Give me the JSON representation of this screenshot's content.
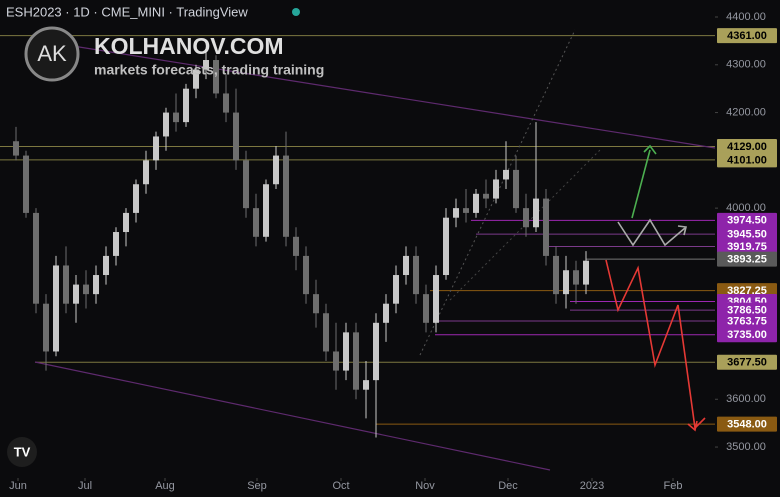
{
  "header": {
    "symbol_line": "ESH2023 · 1D · CME_MINI · TradingView"
  },
  "watermark": {
    "logo": "AK",
    "site": "KOLHANOV.COM",
    "tagline": "markets forecasts, trading training"
  },
  "chart_data": {
    "type": "candlestick",
    "x": [
      0,
      1,
      2,
      3,
      4,
      5,
      6,
      7,
      8,
      9,
      10,
      11,
      12,
      13,
      14,
      15,
      16,
      17,
      18,
      19,
      20,
      21,
      22,
      23,
      24,
      25,
      26,
      27,
      28,
      29,
      30,
      31,
      32,
      33,
      34,
      35,
      36,
      37,
      38,
      39,
      40,
      41,
      42,
      43,
      44,
      45,
      46,
      47,
      48,
      49,
      50,
      51,
      52,
      53,
      54,
      55,
      56,
      57
    ],
    "candles": [
      [
        4140,
        4170,
        4100,
        4110
      ],
      [
        4110,
        4120,
        3980,
        3990
      ],
      [
        3990,
        4000,
        3780,
        3800
      ],
      [
        3800,
        3820,
        3660,
        3700
      ],
      [
        3700,
        3900,
        3690,
        3880
      ],
      [
        3880,
        3920,
        3780,
        3800
      ],
      [
        3800,
        3860,
        3760,
        3840
      ],
      [
        3840,
        3870,
        3790,
        3820
      ],
      [
        3820,
        3880,
        3800,
        3860
      ],
      [
        3860,
        3920,
        3840,
        3900
      ],
      [
        3900,
        3960,
        3880,
        3950
      ],
      [
        3950,
        4000,
        3920,
        3990
      ],
      [
        3990,
        4060,
        3970,
        4050
      ],
      [
        4050,
        4120,
        4030,
        4100
      ],
      [
        4100,
        4160,
        4080,
        4150
      ],
      [
        4150,
        4210,
        4120,
        4200
      ],
      [
        4200,
        4240,
        4160,
        4180
      ],
      [
        4180,
        4260,
        4170,
        4250
      ],
      [
        4250,
        4300,
        4230,
        4290
      ],
      [
        4290,
        4330,
        4270,
        4310
      ],
      [
        4310,
        4320,
        4230,
        4240
      ],
      [
        4240,
        4280,
        4180,
        4200
      ],
      [
        4200,
        4250,
        4080,
        4100
      ],
      [
        4100,
        4120,
        3980,
        4000
      ],
      [
        4000,
        4030,
        3920,
        3940
      ],
      [
        3940,
        4060,
        3930,
        4050
      ],
      [
        4050,
        4130,
        4040,
        4110
      ],
      [
        4110,
        4160,
        3920,
        3940
      ],
      [
        3940,
        3960,
        3870,
        3900
      ],
      [
        3900,
        3920,
        3800,
        3820
      ],
      [
        3820,
        3850,
        3750,
        3780
      ],
      [
        3780,
        3800,
        3680,
        3700
      ],
      [
        3700,
        3760,
        3620,
        3660
      ],
      [
        3660,
        3760,
        3640,
        3740
      ],
      [
        3740,
        3760,
        3600,
        3620
      ],
      [
        3620,
        3680,
        3560,
        3640
      ],
      [
        3640,
        3780,
        3520,
        3760
      ],
      [
        3760,
        3820,
        3720,
        3800
      ],
      [
        3800,
        3880,
        3780,
        3860
      ],
      [
        3860,
        3920,
        3840,
        3900
      ],
      [
        3900,
        3920,
        3800,
        3820
      ],
      [
        3820,
        3840,
        3740,
        3760
      ],
      [
        3760,
        3880,
        3740,
        3860
      ],
      [
        3860,
        4000,
        3850,
        3980
      ],
      [
        3980,
        4020,
        3960,
        4000
      ],
      [
        4000,
        4040,
        3970,
        3990
      ],
      [
        3990,
        4040,
        3980,
        4030
      ],
      [
        4030,
        4060,
        4000,
        4020
      ],
      [
        4020,
        4080,
        4010,
        4060
      ],
      [
        4060,
        4140,
        4040,
        4080
      ],
      [
        4080,
        4110,
        3990,
        4000
      ],
      [
        4000,
        4030,
        3940,
        3960
      ],
      [
        3960,
        4180,
        3950,
        4020
      ],
      [
        4020,
        4040,
        3880,
        3900
      ],
      [
        3900,
        3920,
        3800,
        3820
      ],
      [
        3820,
        3900,
        3790,
        3870
      ],
      [
        3870,
        3890,
        3800,
        3840
      ],
      [
        3840,
        3910,
        3820,
        3890
      ]
    ],
    "up_color": "#c8c8c8",
    "down_color": "#6e6e6e",
    "xlim": [
      -1.6,
      69.9
    ],
    "ylim": [
      3435.2,
      4435.6
    ],
    "xticks": [
      {
        "value": 0.2,
        "label": "Jun"
      },
      {
        "value": 6.9,
        "label": "Jul"
      },
      {
        "value": 14.9,
        "label": "Aug"
      },
      {
        "value": 24.1,
        "label": "Sep"
      },
      {
        "value": 32.5,
        "label": "Oct"
      },
      {
        "value": 40.9,
        "label": "Nov"
      },
      {
        "value": 49.2,
        "label": "Dec"
      },
      {
        "value": 57.6,
        "label": "2023"
      },
      {
        "value": 65.7,
        "label": "Feb"
      }
    ],
    "yticks": [
      {
        "value": 4400,
        "label": "4400.00"
      },
      {
        "value": 4300,
        "label": "4300.00"
      },
      {
        "value": 4200,
        "label": "4200.00"
      },
      {
        "value": 4000,
        "label": "4000.00"
      },
      {
        "value": 3600,
        "label": "3600.00"
      },
      {
        "value": 3500,
        "label": "3500.00"
      }
    ],
    "levels": [
      {
        "value": 4361,
        "label": "4361.00",
        "bg": "#a9a05a",
        "fg": "#000000",
        "line_color": "#7d7840",
        "from": -1.6
      },
      {
        "value": 4129,
        "label": "4129.00",
        "bg": "#a9a05a",
        "fg": "#000000",
        "line_color": "#7d7840",
        "from": -1.6
      },
      {
        "value": 4101,
        "label": "4101.00",
        "bg": "#a9a05a",
        "fg": "#000000",
        "line_color": "#7d7840",
        "from": -1.6
      },
      {
        "value": 3974.5,
        "label": "3974.50",
        "bg": "#8e24aa",
        "fg": "#ffffff",
        "line_color": "#9c27b0",
        "from": 45.5
      },
      {
        "value": 3945.5,
        "label": "3945.50",
        "bg": "#8e24aa",
        "fg": "#ffffff",
        "line_color": "#7b3a8a",
        "from": 46
      },
      {
        "value": 3919.75,
        "label": "3919.75",
        "bg": "#8e24aa",
        "fg": "#ffffff",
        "line_color": "#7b3a8a",
        "from": 53
      },
      {
        "value": 3893.25,
        "label": "3893.25",
        "bg": "#5a5a5a",
        "fg": "#ffffff",
        "line_color": "#777777",
        "from": 57
      },
      {
        "value": 3827.25,
        "label": "3827.25",
        "bg": "#8a5a12",
        "fg": "#ffffff",
        "line_color": "#8a5a12",
        "from": 41.4
      },
      {
        "value": 3804.5,
        "label": "3804.50",
        "bg": "#8e24aa",
        "fg": "#ffffff",
        "line_color": "#9c27b0",
        "from": 55.4
      },
      {
        "value": 3786.5,
        "label": "3786.50",
        "bg": "#8e24aa",
        "fg": "#ffffff",
        "line_color": "#7b3a8a",
        "from": 55.4
      },
      {
        "value": 3763.75,
        "label": "3763.75",
        "bg": "#8e24aa",
        "fg": "#ffffff",
        "line_color": "#7b3a8a",
        "from": 42
      },
      {
        "value": 3735,
        "label": "3735.00",
        "bg": "#8e24aa",
        "fg": "#ffffff",
        "line_color": "#9c27b0",
        "from": 41.9
      },
      {
        "value": 3677.5,
        "label": "3677.50",
        "bg": "#a9a05a",
        "fg": "#000000",
        "line_color": "#7d7840",
        "from": 1.9
      },
      {
        "value": 3548,
        "label": "3548.00",
        "bg": "#8a5a12",
        "fg": "#ffffff",
        "line_color": "#8a5a12",
        "from": 36
      }
    ]
  }
}
